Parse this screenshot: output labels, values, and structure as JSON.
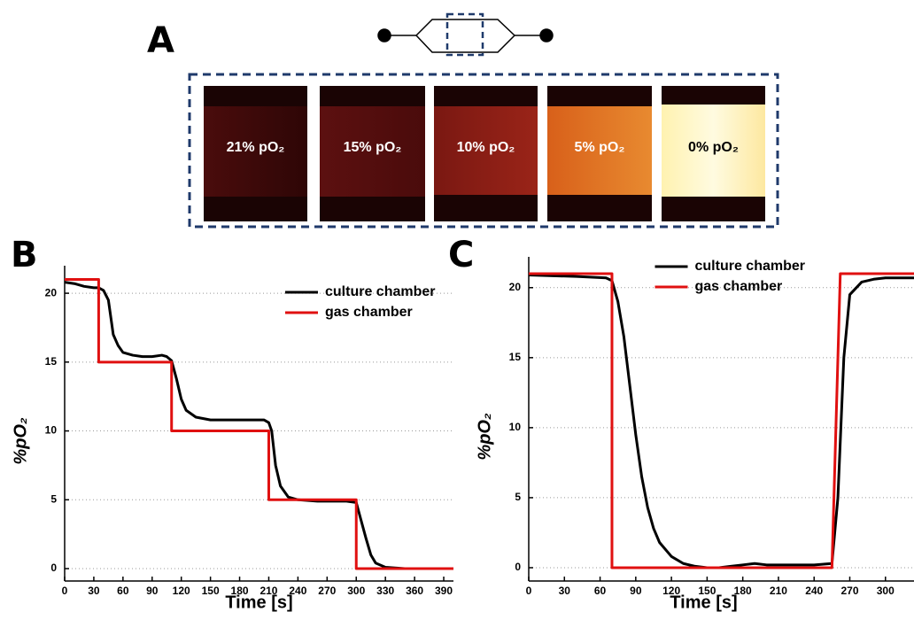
{
  "panel_a": {
    "label": "A",
    "tiles": [
      "21% pO₂",
      "15% pO₂",
      "10% pO₂",
      "5% pO₂",
      "0% pO₂"
    ]
  },
  "chart_data": [
    {
      "panel": "B",
      "type": "line",
      "xlabel": "Time [s]",
      "ylabel": "%pO₂",
      "xlim": [
        0,
        400
      ],
      "ylim": [
        -0.9,
        22
      ],
      "xticks": [
        0,
        30,
        60,
        90,
        120,
        150,
        180,
        210,
        240,
        270,
        300,
        330,
        360,
        390
      ],
      "yticks": [
        0,
        5,
        10,
        15,
        20
      ],
      "grid": true,
      "legend": "upper right",
      "series": [
        {
          "name": "culture chamber",
          "color": "#000000",
          "x": [
            0,
            10,
            20,
            30,
            35,
            40,
            45,
            50,
            55,
            60,
            70,
            80,
            90,
            100,
            105,
            110,
            115,
            120,
            125,
            135,
            150,
            170,
            190,
            205,
            210,
            213,
            217,
            222,
            230,
            240,
            260,
            290,
            300,
            305,
            310,
            315,
            320,
            330,
            350,
            400
          ],
          "values": [
            20.8,
            20.7,
            20.5,
            20.4,
            20.4,
            20.2,
            19.5,
            17,
            16.2,
            15.7,
            15.5,
            15.4,
            15.4,
            15.5,
            15.4,
            15.1,
            13.8,
            12.3,
            11.5,
            11,
            10.8,
            10.8,
            10.8,
            10.8,
            10.6,
            10,
            7.5,
            6,
            5.2,
            5,
            4.9,
            4.9,
            4.8,
            3.5,
            2.2,
            1,
            0.4,
            0.1,
            0,
            0
          ]
        },
        {
          "name": "gas chamber",
          "color": "#e01010",
          "x": [
            0,
            35,
            35,
            110,
            110,
            210,
            210,
            300,
            300,
            400
          ],
          "values": [
            21,
            21,
            15,
            15,
            10,
            10,
            5,
            5,
            0,
            0
          ]
        }
      ]
    },
    {
      "panel": "C",
      "type": "line",
      "xlabel": "Time [s]",
      "ylabel": "%pO₂",
      "xlim": [
        0,
        324
      ],
      "ylim": [
        -0.95,
        22.2
      ],
      "xticks": [
        0,
        30,
        60,
        90,
        120,
        150,
        180,
        210,
        240,
        270,
        300
      ],
      "yticks": [
        0,
        5,
        10,
        15,
        20
      ],
      "grid": true,
      "legend": "upper center",
      "series": [
        {
          "name": "culture chamber",
          "color": "#000000",
          "x": [
            0,
            40,
            65,
            70,
            75,
            80,
            85,
            90,
            95,
            100,
            105,
            110,
            120,
            130,
            140,
            150,
            160,
            170,
            180,
            190,
            200,
            220,
            240,
            255,
            260,
            265,
            270,
            280,
            290,
            300,
            324
          ],
          "values": [
            20.9,
            20.8,
            20.7,
            20.5,
            19,
            16.5,
            13,
            9.5,
            6.5,
            4.3,
            2.8,
            1.8,
            0.8,
            0.3,
            0.1,
            0,
            0,
            0.1,
            0.2,
            0.3,
            0.2,
            0.2,
            0.2,
            0.3,
            5,
            15,
            19.5,
            20.4,
            20.6,
            20.7,
            20.7
          ]
        },
        {
          "name": "gas chamber",
          "color": "#e01010",
          "x": [
            0,
            70,
            70,
            255,
            262,
            324
          ],
          "values": [
            21,
            21,
            0,
            0,
            21,
            21
          ]
        }
      ]
    }
  ]
}
